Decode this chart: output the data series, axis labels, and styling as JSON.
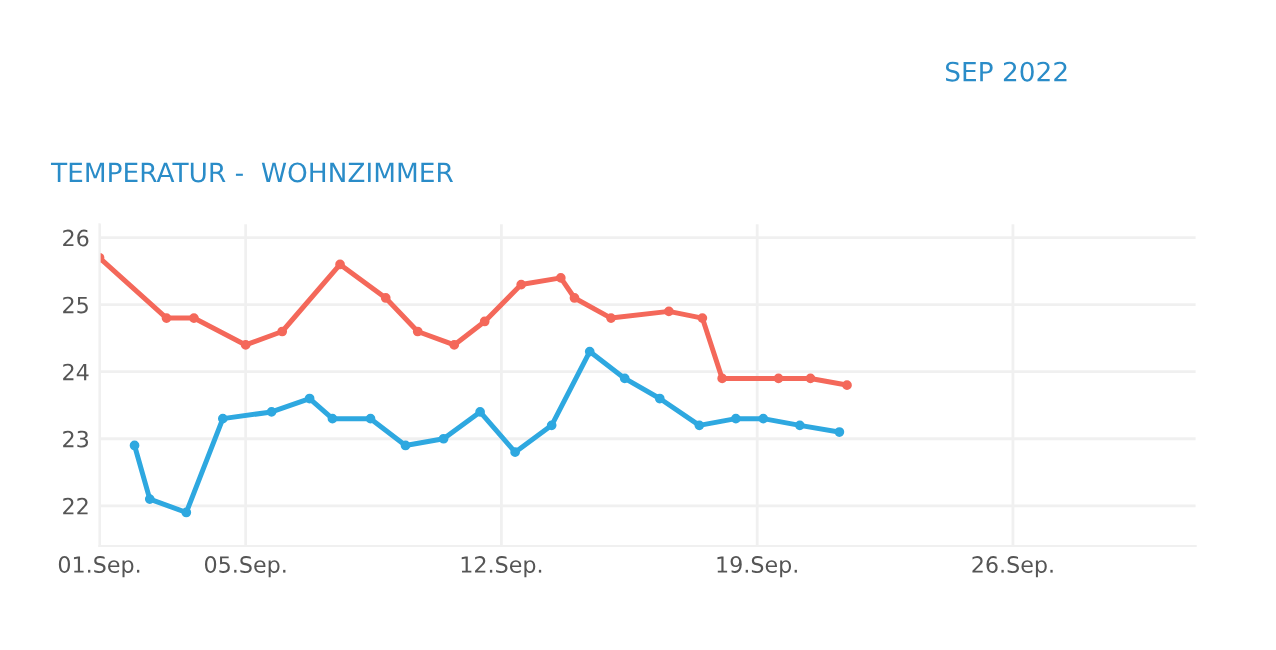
{
  "chart_data": {
    "type": "line",
    "title": "TEMPERATUR -  WOHNZIMMER",
    "annotations": [
      "SEP 2022"
    ],
    "xlim": [
      "2022-09-01",
      "2022-10-01"
    ],
    "xticks": [
      {
        "value": "2022-09-01",
        "label": "01.Sep."
      },
      {
        "value": "2022-09-05",
        "label": "05.Sep."
      },
      {
        "value": "2022-09-12",
        "label": "12.Sep."
      },
      {
        "value": "2022-09-19",
        "label": "19.Sep."
      },
      {
        "value": "2022-09-26",
        "label": "26.Sep."
      }
    ],
    "ylim": [
      21.4,
      26.2
    ],
    "yticks": [
      22,
      23,
      24,
      25,
      26
    ],
    "grid": true,
    "marker": "circle",
    "line_style": "solid",
    "series": [
      {
        "color": "#f4685a",
        "x": [
          "2022-09-01T00:00",
          "2022-09-02T20:00",
          "2022-09-03T14:00",
          "2022-09-05T00:00",
          "2022-09-06T00:00",
          "2022-09-07T14:00",
          "2022-09-08T20:00",
          "2022-09-09T17:00",
          "2022-09-10T17:00",
          "2022-09-11T13:00",
          "2022-09-12T13:00",
          "2022-09-13T15:00",
          "2022-09-14T00:00",
          "2022-09-15T00:00",
          "2022-09-16T14:00",
          "2022-09-17T12:00",
          "2022-09-18T01:00",
          "2022-09-19T14:00",
          "2022-09-20T11:00",
          "2022-09-21T11:00"
        ],
        "values": [
          25.7,
          24.8,
          24.8,
          24.4,
          24.6,
          25.6,
          25.1,
          24.6,
          24.4,
          24.75,
          25.3,
          25.4,
          25.1,
          24.8,
          24.9,
          24.8,
          23.9,
          23.9,
          23.9,
          23.8
        ]
      },
      {
        "color": "#2ea8e0",
        "x": [
          "2022-09-01T23:00",
          "2022-09-02T09:00",
          "2022-09-03T09:00",
          "2022-09-04T09:00",
          "2022-09-05T17:00",
          "2022-09-06T18:00",
          "2022-09-07T09:00",
          "2022-09-08T10:00",
          "2022-09-09T09:00",
          "2022-09-10T10:00",
          "2022-09-11T10:00",
          "2022-09-12T09:00",
          "2022-09-13T09:00",
          "2022-09-14T10:00",
          "2022-09-15T09:00",
          "2022-09-16T08:00",
          "2022-09-17T10:00",
          "2022-09-18T10:00",
          "2022-09-19T04:00",
          "2022-09-20T04:00",
          "2022-09-21T06:00"
        ],
        "values": [
          22.9,
          22.1,
          21.9,
          23.3,
          23.4,
          23.6,
          23.3,
          23.3,
          22.9,
          23.0,
          23.4,
          22.8,
          23.2,
          24.3,
          23.9,
          23.6,
          23.2,
          23.3,
          23.3,
          23.2,
          23.1
        ]
      }
    ]
  }
}
